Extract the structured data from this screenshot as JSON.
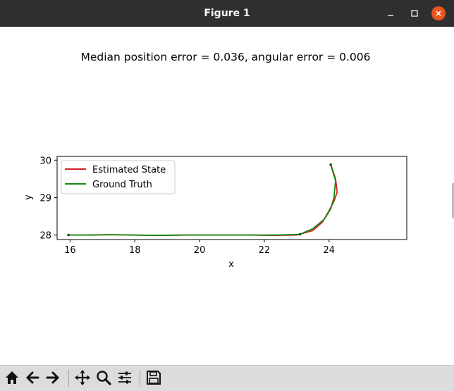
{
  "window": {
    "title": "Figure 1"
  },
  "figure": {
    "title": "Median position error = 0.036, angular error = 0.006"
  },
  "chart_data": {
    "type": "line",
    "title": "Median position error = 0.036, angular error = 0.006",
    "xlabel": "x",
    "ylabel": "y",
    "xlim": [
      15.6,
      26.4
    ],
    "ylim": [
      27.88,
      30.1
    ],
    "xticks": [
      16,
      18,
      20,
      22,
      24
    ],
    "yticks": [
      28,
      29,
      30
    ],
    "grid": false,
    "legend_position": "top-left",
    "series": [
      {
        "name": "Estimated State",
        "color": "#d62020",
        "points": [
          [
            15.95,
            28.0
          ],
          [
            16.5,
            28.0
          ],
          [
            17.2,
            28.01
          ],
          [
            18.0,
            28.0
          ],
          [
            18.7,
            27.99
          ],
          [
            19.5,
            28.0
          ],
          [
            20.5,
            28.0
          ],
          [
            21.6,
            28.0
          ],
          [
            22.3,
            27.99
          ],
          [
            23.0,
            28.0
          ],
          [
            23.5,
            28.12
          ],
          [
            23.8,
            28.35
          ],
          [
            24.0,
            28.65
          ],
          [
            24.15,
            28.9
          ],
          [
            24.25,
            29.15
          ],
          [
            24.2,
            29.5
          ],
          [
            24.05,
            29.9
          ]
        ]
      },
      {
        "name": "Ground Truth",
        "color": "#108a10",
        "points": [
          [
            15.95,
            28.0
          ],
          [
            16.6,
            28.0
          ],
          [
            17.3,
            28.01
          ],
          [
            18.0,
            28.0
          ],
          [
            18.8,
            27.99
          ],
          [
            19.6,
            28.0
          ],
          [
            20.6,
            28.0
          ],
          [
            21.6,
            28.0
          ],
          [
            22.4,
            28.0
          ],
          [
            23.1,
            28.02
          ],
          [
            23.5,
            28.17
          ],
          [
            23.85,
            28.42
          ],
          [
            24.05,
            28.7
          ],
          [
            24.15,
            29.0
          ],
          [
            24.2,
            29.45
          ],
          [
            24.05,
            29.88
          ]
        ]
      }
    ]
  },
  "toolbar": {
    "tools": [
      "home-icon",
      "back-arrow-icon",
      "forward-arrow-icon",
      "pan-icon",
      "zoom-icon",
      "subplots-config-icon",
      "save-icon"
    ]
  },
  "colors": {
    "titlebar": "#2f2f2f",
    "close_button": "#e95420",
    "toolbar": "#dcdcdc"
  }
}
